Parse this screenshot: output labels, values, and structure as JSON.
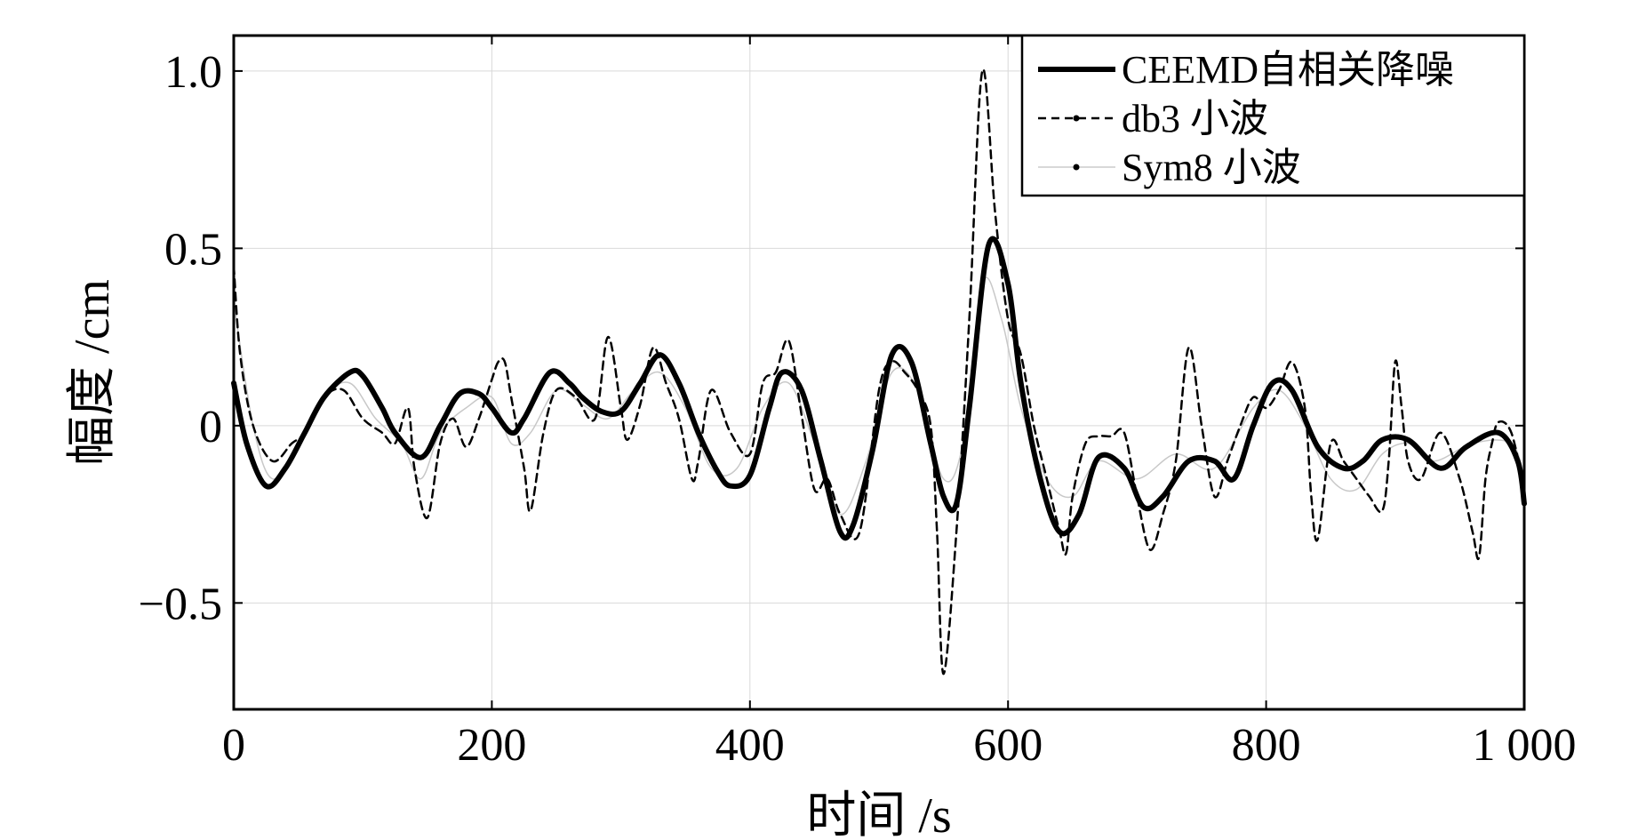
{
  "chart_data": {
    "type": "line",
    "title": "",
    "xlabel": "时间 /s",
    "ylabel": "幅度 /cm",
    "xlim": [
      0,
      1000
    ],
    "ylim": [
      -0.8,
      1.1
    ],
    "xticks": [
      0,
      200,
      400,
      600,
      800,
      1000
    ],
    "xtick_labels": [
      "0",
      "200",
      "400",
      "600",
      "800",
      "1 000"
    ],
    "yticks": [
      -0.5,
      0,
      0.5,
      1.0
    ],
    "ytick_labels": [
      "−0.5",
      "0",
      "0.5",
      "1.0"
    ],
    "grid": true,
    "legend_position": "top-right",
    "series": [
      {
        "name": "CEEMD自相关降噪",
        "color": "#000000",
        "style": "solid-thick",
        "x": [
          0,
          10,
          25,
          40,
          55,
          70,
          90,
          100,
          115,
          125,
          145,
          160,
          175,
          190,
          200,
          215,
          225,
          245,
          260,
          270,
          285,
          300,
          315,
          330,
          345,
          360,
          375,
          385,
          400,
          415,
          425,
          440,
          455,
          470,
          480,
          495,
          510,
          525,
          540,
          550,
          560,
          570,
          585,
          600,
          610,
          625,
          640,
          655,
          670,
          690,
          705,
          720,
          740,
          760,
          775,
          790,
          805,
          820,
          840,
          860,
          875,
          890,
          910,
          935,
          955,
          980,
          995,
          1000
        ],
        "y": [
          0.12,
          -0.05,
          -0.17,
          -0.12,
          -0.02,
          0.08,
          0.15,
          0.14,
          0.05,
          -0.02,
          -0.09,
          0.0,
          0.09,
          0.09,
          0.05,
          -0.02,
          0.02,
          0.15,
          0.12,
          0.08,
          0.04,
          0.04,
          0.12,
          0.2,
          0.12,
          -0.02,
          -0.13,
          -0.17,
          -0.14,
          0.05,
          0.15,
          0.1,
          -0.1,
          -0.3,
          -0.28,
          -0.07,
          0.2,
          0.18,
          -0.05,
          -0.2,
          -0.22,
          0.05,
          0.51,
          0.4,
          0.12,
          -0.15,
          -0.3,
          -0.25,
          -0.09,
          -0.12,
          -0.23,
          -0.2,
          -0.1,
          -0.1,
          -0.15,
          0.0,
          0.12,
          0.1,
          -0.06,
          -0.12,
          -0.1,
          -0.04,
          -0.04,
          -0.12,
          -0.06,
          -0.02,
          -0.1,
          -0.22
        ]
      },
      {
        "name": "db3 小波",
        "color": "#000000",
        "style": "dashed",
        "x": [
          0,
          5,
          15,
          30,
          45,
          55,
          70,
          85,
          100,
          115,
          125,
          135,
          140,
          150,
          160,
          170,
          180,
          190,
          200,
          205,
          210,
          215,
          225,
          230,
          240,
          250,
          265,
          280,
          290,
          300,
          305,
          315,
          325,
          335,
          345,
          355,
          360,
          370,
          385,
          400,
          410,
          420,
          430,
          440,
          450,
          460,
          470,
          485,
          500,
          510,
          520,
          530,
          540,
          545,
          550,
          560,
          570,
          580,
          590,
          600,
          610,
          620,
          630,
          640,
          645,
          650,
          660,
          670,
          680,
          690,
          700,
          710,
          720,
          730,
          740,
          750,
          760,
          770,
          780,
          790,
          800,
          810,
          820,
          830,
          835,
          840,
          850,
          860,
          870,
          880,
          890,
          895,
          900,
          905,
          910,
          920,
          935,
          950,
          960,
          965,
          970,
          975,
          980,
          990,
          1000
        ],
        "y": [
          0.45,
          0.2,
          0.0,
          -0.1,
          -0.05,
          -0.02,
          0.08,
          0.1,
          0.02,
          -0.02,
          -0.05,
          0.05,
          -0.12,
          -0.26,
          -0.05,
          0.02,
          -0.06,
          0.02,
          0.13,
          0.18,
          0.18,
          0.08,
          -0.12,
          -0.24,
          -0.02,
          0.1,
          0.08,
          0.02,
          0.25,
          0.05,
          -0.04,
          0.06,
          0.22,
          0.12,
          0.02,
          -0.15,
          -0.1,
          0.1,
          -0.02,
          -0.08,
          0.12,
          0.15,
          0.24,
          0.03,
          -0.18,
          -0.15,
          -0.25,
          -0.3,
          0.1,
          0.18,
          0.15,
          0.1,
          0.0,
          -0.3,
          -0.7,
          -0.3,
          0.3,
          1.0,
          0.6,
          0.3,
          0.2,
          0.0,
          -0.15,
          -0.3,
          -0.36,
          -0.2,
          -0.05,
          -0.03,
          -0.03,
          -0.02,
          -0.2,
          -0.35,
          -0.25,
          -0.1,
          0.22,
          0.0,
          -0.2,
          -0.1,
          0.0,
          0.08,
          0.05,
          0.1,
          0.18,
          0.05,
          -0.2,
          -0.32,
          -0.05,
          -0.1,
          -0.15,
          -0.2,
          -0.24,
          -0.1,
          0.18,
          0.05,
          -0.1,
          -0.15,
          -0.02,
          -0.15,
          -0.3,
          -0.37,
          -0.15,
          -0.05,
          0.01,
          -0.02,
          -0.18
        ]
      },
      {
        "name": "Sym8 小波",
        "color": "#c8c8c8",
        "style": "thin",
        "x": [
          0,
          15,
          30,
          50,
          70,
          90,
          110,
          130,
          145,
          160,
          180,
          200,
          215,
          230,
          250,
          270,
          290,
          310,
          330,
          350,
          370,
          390,
          410,
          430,
          450,
          470,
          490,
          510,
          530,
          550,
          565,
          580,
          595,
          610,
          630,
          650,
          670,
          700,
          730,
          760,
          790,
          810,
          830,
          850,
          870,
          890,
          910,
          930,
          960,
          990,
          1000
        ],
        "y": [
          0.35,
          0.0,
          -0.15,
          -0.05,
          0.08,
          0.12,
          0.02,
          -0.05,
          -0.15,
          -0.02,
          0.05,
          0.08,
          -0.05,
          -0.02,
          0.1,
          0.06,
          0.02,
          0.1,
          0.15,
          0.05,
          -0.12,
          -0.12,
          0.05,
          0.12,
          -0.05,
          -0.25,
          -0.1,
          0.15,
          0.1,
          -0.15,
          -0.05,
          0.4,
          0.3,
          0.05,
          -0.15,
          -0.2,
          -0.1,
          -0.15,
          -0.08,
          -0.12,
          0.05,
          0.1,
          0.0,
          -0.15,
          -0.18,
          -0.08,
          -0.05,
          -0.1,
          -0.05,
          -0.05,
          -0.15
        ]
      }
    ]
  }
}
